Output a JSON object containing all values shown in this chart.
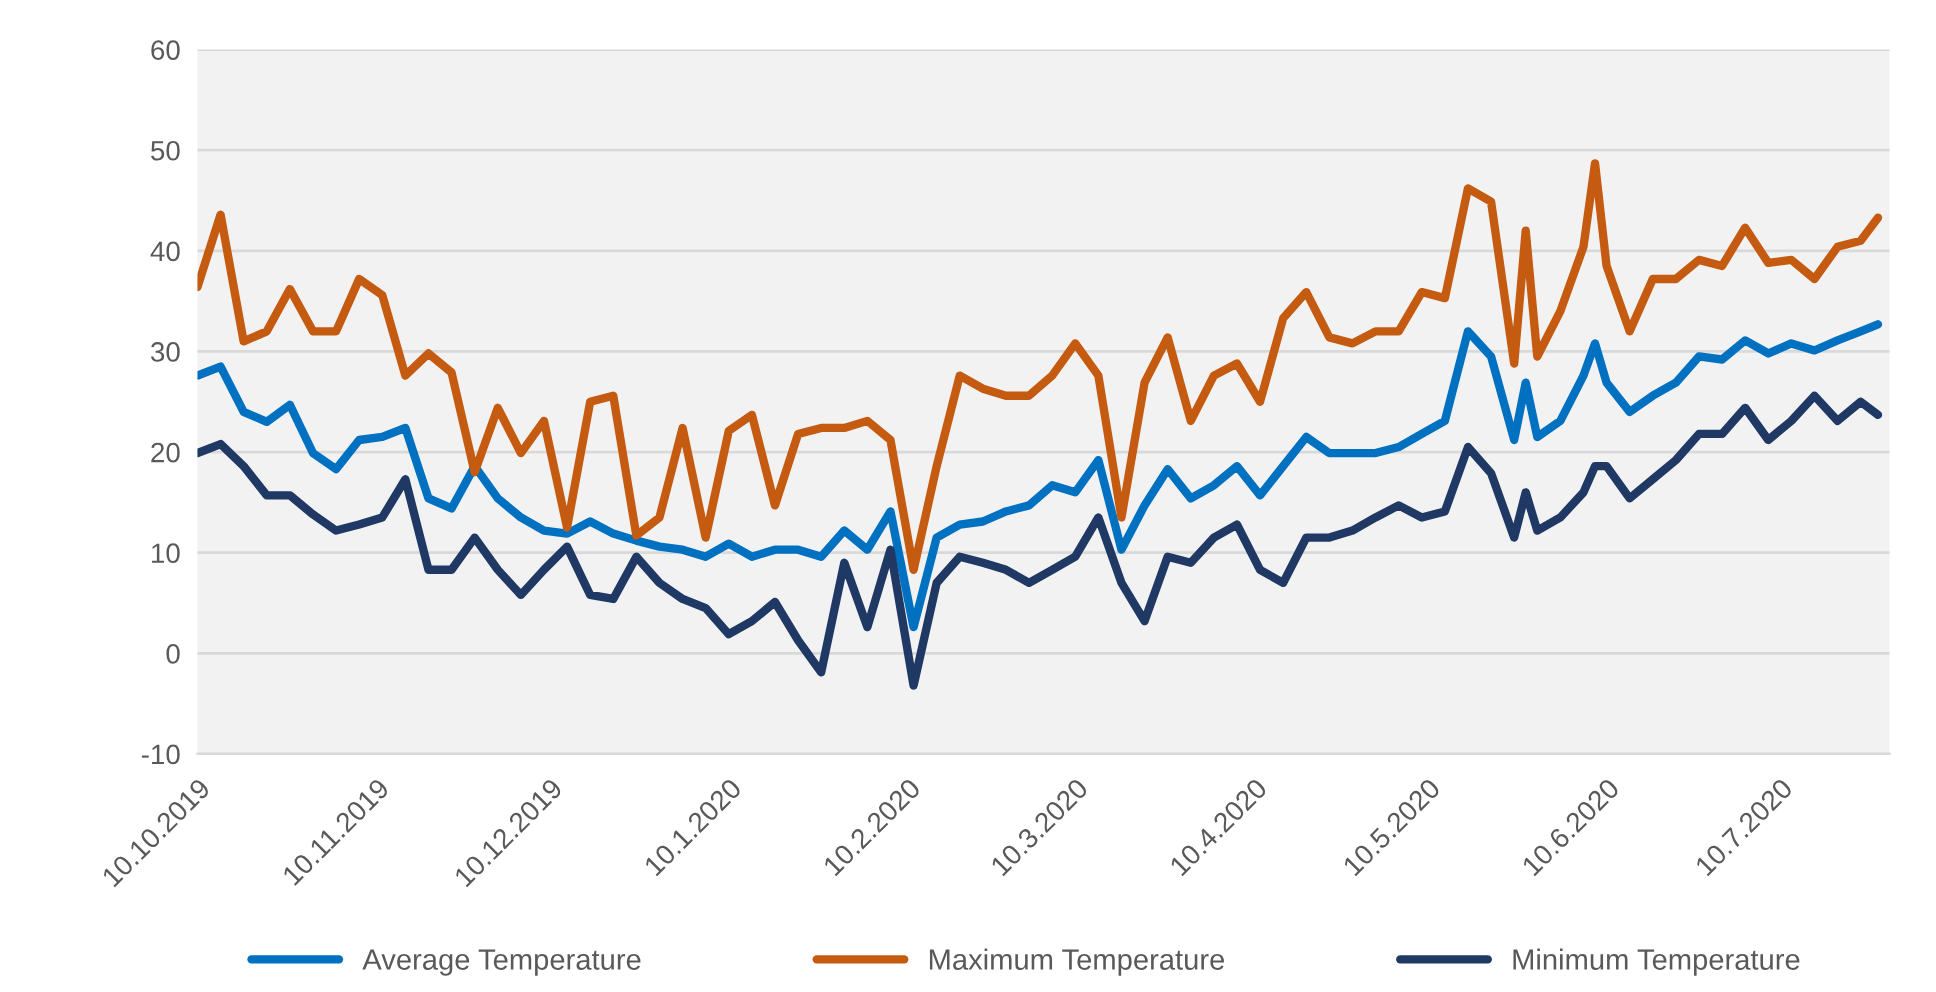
{
  "chart_data": {
    "type": "line",
    "x": [
      "2019-10-10",
      "2019-10-14",
      "2019-10-18",
      "2019-10-22",
      "2019-10-26",
      "2019-10-30",
      "2019-11-03",
      "2019-11-07",
      "2019-11-11",
      "2019-11-15",
      "2019-11-19",
      "2019-11-23",
      "2019-11-27",
      "2019-12-01",
      "2019-12-05",
      "2019-12-09",
      "2019-12-13",
      "2019-12-17",
      "2019-12-21",
      "2019-12-25",
      "2019-12-29",
      "2020-01-02",
      "2020-01-06",
      "2020-01-10",
      "2020-01-14",
      "2020-01-18",
      "2020-01-22",
      "2020-01-26",
      "2020-01-30",
      "2020-02-03",
      "2020-02-07",
      "2020-02-11",
      "2020-02-15",
      "2020-02-19",
      "2020-02-23",
      "2020-02-27",
      "2020-03-02",
      "2020-03-06",
      "2020-03-10",
      "2020-03-14",
      "2020-03-18",
      "2020-03-22",
      "2020-03-26",
      "2020-03-30",
      "2020-04-03",
      "2020-04-07",
      "2020-04-11",
      "2020-04-15",
      "2020-04-19",
      "2020-04-23",
      "2020-04-27",
      "2020-05-01",
      "2020-05-05",
      "2020-05-09",
      "2020-05-13",
      "2020-05-17",
      "2020-05-21",
      "2020-05-25",
      "2020-05-27",
      "2020-05-29",
      "2020-06-02",
      "2020-06-06",
      "2020-06-08",
      "2020-06-10",
      "2020-06-14",
      "2020-06-18",
      "2020-06-22",
      "2020-06-26",
      "2020-06-30",
      "2020-07-04",
      "2020-07-08",
      "2020-07-12",
      "2020-07-16",
      "2020-07-20",
      "2020-07-24",
      "2020-07-27"
    ],
    "series": [
      {
        "name": "Average Temperature",
        "color": "#0070c0",
        "values": [
          27.6,
          28.5,
          24,
          23,
          24.7,
          19.9,
          18.3,
          21.2,
          21.5,
          22.4,
          15.4,
          14.4,
          18.6,
          15.4,
          13.5,
          12.2,
          11.9,
          13.1,
          11.9,
          11.2,
          10.6,
          10.3,
          9.6,
          10.9,
          9.6,
          10.3,
          10.3,
          9.6,
          12.2,
          10.3,
          14.1,
          2.6,
          11.5,
          12.8,
          13.1,
          14.1,
          14.7,
          16.7,
          16,
          19.2,
          10.3,
          14.7,
          18.3,
          15.4,
          16.7,
          18.6,
          15.7,
          18.6,
          21.5,
          19.9,
          19.9,
          19.9,
          20.5,
          21.8,
          23.1,
          32,
          29.5,
          21.2,
          26.9,
          21.5,
          23.1,
          27.6,
          30.8,
          26.9,
          24,
          25.6,
          26.9,
          29.5,
          29.2,
          31.1,
          29.8,
          30.8,
          30.1,
          31.1,
          32,
          32.7
        ]
      },
      {
        "name": "Maximum Temperature",
        "color": "#c55a11",
        "values": [
          36.4,
          43.6,
          31,
          32,
          36.2,
          32,
          32,
          37.2,
          35.6,
          27.6,
          29.8,
          27.9,
          18,
          24.4,
          19.9,
          23.1,
          12.5,
          25,
          25.6,
          11.7,
          13.5,
          22.4,
          11.5,
          22.1,
          23.7,
          14.7,
          21.8,
          22.4,
          22.4,
          23.1,
          21.2,
          8.3,
          18.6,
          27.6,
          26.3,
          25.6,
          25.6,
          27.6,
          30.8,
          27.6,
          13.5,
          26.9,
          31.4,
          23.1,
          27.6,
          28.8,
          25,
          33.3,
          35.9,
          31.4,
          30.8,
          32,
          32,
          35.9,
          35.3,
          46.2,
          44.9,
          28.8,
          42,
          29.5,
          34,
          40.4,
          48.7,
          38.5,
          32,
          37.2,
          37.2,
          39.1,
          38.5,
          42.3,
          38.8,
          39.1,
          37.2,
          40.4,
          41,
          43.3
        ]
      },
      {
        "name": "Minimum Temperature",
        "color": "#1f3864",
        "values": [
          19.9,
          20.8,
          18.6,
          15.7,
          15.7,
          13.8,
          12.2,
          12.8,
          13.5,
          17.3,
          8.3,
          8.3,
          11.5,
          8.3,
          5.8,
          8.3,
          10.6,
          5.8,
          5.4,
          9.6,
          7,
          5.4,
          4.5,
          1.9,
          3.2,
          5.1,
          1.3,
          -1.9,
          9,
          2.6,
          10.3,
          -3.2,
          7,
          9.6,
          9,
          8.3,
          7,
          8.3,
          9.6,
          13.5,
          7,
          3.2,
          9.6,
          9,
          11.5,
          12.8,
          8.3,
          7,
          11.5,
          11.5,
          12.2,
          13.5,
          14.7,
          13.5,
          14.1,
          20.5,
          17.9,
          11.5,
          16,
          12.2,
          13.5,
          16,
          18.6,
          18.6,
          15.4,
          17.3,
          19.2,
          21.8,
          21.8,
          24.4,
          21.2,
          23.1,
          25.6,
          23.1,
          25,
          23.7
        ]
      }
    ],
    "xlim": [
      "2019-10-10",
      "2020-07-29"
    ],
    "xticks": [
      {
        "value": "2019-10-10",
        "label": "10.10.2019"
      },
      {
        "value": "2019-11-10",
        "label": "10.11.2019"
      },
      {
        "value": "2019-12-10",
        "label": "10.12.2019"
      },
      {
        "value": "2020-01-10",
        "label": "10.1.2020"
      },
      {
        "value": "2020-02-10",
        "label": "10.2.2020"
      },
      {
        "value": "2020-03-10",
        "label": "10.3.2020"
      },
      {
        "value": "2020-04-10",
        "label": "10.4.2020"
      },
      {
        "value": "2020-05-10",
        "label": "10.5.2020"
      },
      {
        "value": "2020-06-10",
        "label": "10.6.2020"
      },
      {
        "value": "2020-07-10",
        "label": "10.7.2020"
      }
    ],
    "ylim": [
      -10,
      60
    ],
    "yticks": [
      -10,
      0,
      10,
      20,
      30,
      40,
      50,
      60
    ],
    "grid": "y",
    "legend": "bottom",
    "marker": "none",
    "line_style": "solid"
  }
}
